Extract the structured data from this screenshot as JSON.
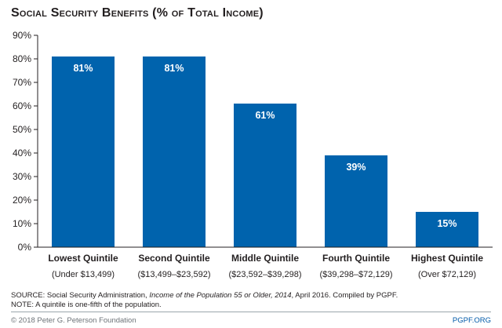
{
  "title": "Social Security Benefits (% of Total Income)",
  "colors": {
    "bar": "#0063ad",
    "axis": "#231f20",
    "bar_label": "#ffffff"
  },
  "chart_data": {
    "type": "bar",
    "title": "Social Security Benefits (% of Total Income)",
    "categories": [
      "Lowest Quintile",
      "Second Quintile",
      "Middle Quintile",
      "Fourth Quintile",
      "Highest Quintile"
    ],
    "category_subtitles": [
      "(Under $13,499)",
      "($13,499–$23,592)",
      "($23,592–$39,298)",
      "($39,298–$72,129)",
      "(Over $72,129)"
    ],
    "values": [
      81,
      81,
      61,
      39,
      15
    ],
    "value_labels": [
      "81%",
      "81%",
      "61%",
      "39%",
      "15%"
    ],
    "ylim": [
      0,
      90
    ],
    "yticks": [
      0,
      10,
      20,
      30,
      40,
      50,
      60,
      70,
      80,
      90
    ],
    "ytick_labels": [
      "0%",
      "10%",
      "20%",
      "30%",
      "40%",
      "50%",
      "60%",
      "70%",
      "80%",
      "90%"
    ],
    "grid": false,
    "legend": "none"
  },
  "source": {
    "line1_prefix": "SOURCE: Social Security Administration, ",
    "line1_italic": "Income of the Population 55 or Older, 2014",
    "line1_suffix": ", April 2016. Compiled by PGPF.",
    "line2": "NOTE: A quintile is one-fifth of the population."
  },
  "footer": {
    "copyright": "© 2018 Peter G. Peterson Foundation",
    "site": "PGPF.ORG"
  }
}
